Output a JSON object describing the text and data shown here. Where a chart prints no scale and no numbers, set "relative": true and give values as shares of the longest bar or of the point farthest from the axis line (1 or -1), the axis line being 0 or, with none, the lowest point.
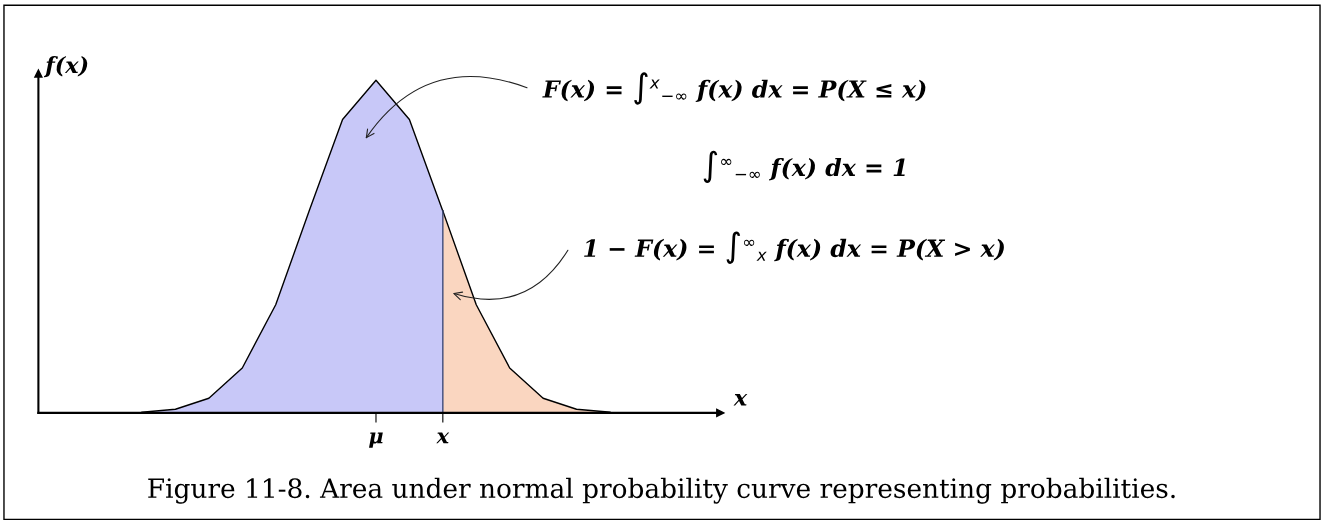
{
  "chart_data": {
    "type": "area",
    "relative": true,
    "ylabel": "f(x)",
    "categories": [
      null,
      null,
      null,
      null,
      null,
      null,
      null,
      "μ",
      null,
      "x",
      null,
      null,
      null,
      null,
      null
    ],
    "series": [
      {
        "color": "#c8c8f8",
        "values": [
          0.002,
          0.011,
          0.044,
          0.135,
          0.325,
          0.607,
          0.882,
          1,
          0.882,
          0.607,
          null,
          null,
          null,
          null,
          null
        ]
      },
      {
        "color": "#fad6c0",
        "values": [
          null,
          null,
          null,
          null,
          null,
          null,
          null,
          null,
          null,
          0.607,
          0.325,
          0.135,
          0.044,
          0.011,
          0.002
        ]
      }
    ],
    "annotations": [
      "F(x) = ∫$^{x}$$_{−∞}$ f(x) dx = P(X ≤ x)",
      "∫$^{∞}$$_{−∞}$ f(x) dx = 1",
      "1 − F(x) = ∫$^{∞}$$_{x}$ f(x) dx = P(X > x)",
      "Figure 11-8. Area under normal probability curve representing probabilities.",
      "x"
    ]
  }
}
